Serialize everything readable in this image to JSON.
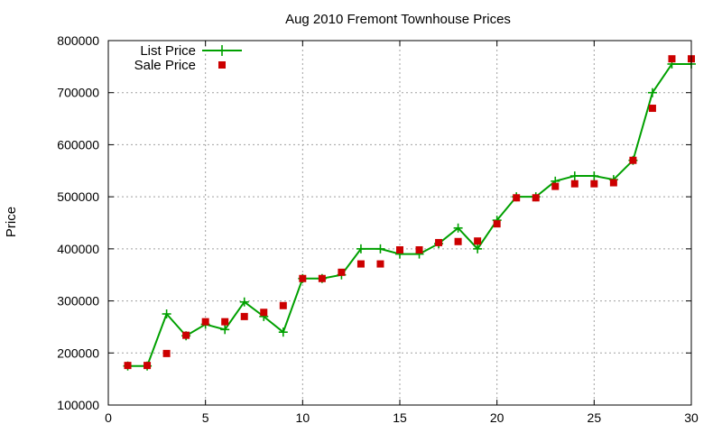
{
  "chart_data": {
    "type": "line",
    "title": "Aug 2010 Fremont Townhouse Prices",
    "xlabel": "",
    "ylabel": "Price",
    "xlim": [
      0,
      30
    ],
    "ylim": [
      100000,
      800000
    ],
    "xticks": [
      0,
      5,
      10,
      15,
      20,
      25,
      30
    ],
    "yticks": [
      100000,
      200000,
      300000,
      400000,
      500000,
      600000,
      700000,
      800000
    ],
    "grid": true,
    "legend_position": "top-left",
    "series": [
      {
        "name": "List Price",
        "style": "line-with-plus-markers",
        "color": "#00a000",
        "x": [
          1,
          2,
          3,
          4,
          5,
          6,
          7,
          8,
          9,
          10,
          11,
          12,
          13,
          14,
          15,
          16,
          17,
          18,
          19,
          20,
          21,
          22,
          23,
          24,
          25,
          26,
          27,
          28,
          29,
          30
        ],
        "values": [
          175000,
          175000,
          275000,
          233000,
          255000,
          245000,
          298000,
          270000,
          240000,
          343000,
          343000,
          350000,
          400000,
          400000,
          390000,
          390000,
          410000,
          440000,
          400000,
          455000,
          500000,
          500000,
          530000,
          540000,
          540000,
          533000,
          570000,
          700000,
          755000,
          755000
        ]
      },
      {
        "name": "Sale Price",
        "style": "square-markers",
        "color": "#cc0000",
        "x": [
          1,
          2,
          3,
          4,
          5,
          6,
          7,
          8,
          9,
          10,
          11,
          12,
          13,
          14,
          15,
          16,
          17,
          18,
          19,
          20,
          21,
          22,
          23,
          24,
          25,
          26,
          27,
          28,
          29,
          30
        ],
        "values": [
          176000,
          176000,
          199000,
          234000,
          260000,
          260000,
          270000,
          278000,
          291000,
          343000,
          343000,
          355000,
          371000,
          371000,
          398000,
          398000,
          412000,
          414000,
          415000,
          448000,
          498000,
          498000,
          520000,
          525000,
          525000,
          527000,
          570000,
          670000,
          765000,
          765000
        ]
      }
    ]
  }
}
